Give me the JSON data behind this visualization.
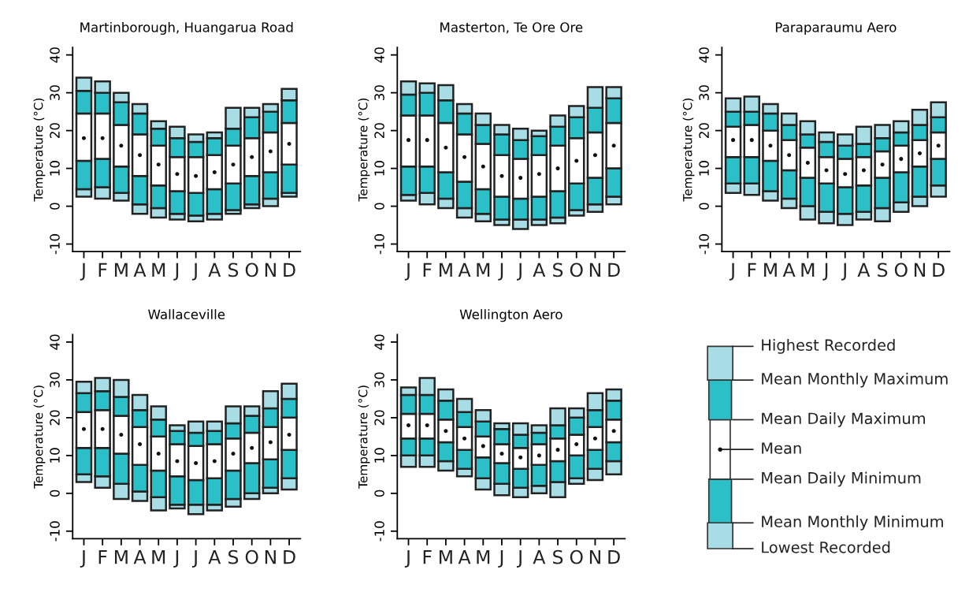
{
  "chart_data": [
    {
      "type": "bar",
      "title": "Martinborough, Huangarua Road",
      "ylabel": "Temperature (°C)",
      "categories": [
        "J",
        "F",
        "M",
        "A",
        "M",
        "J",
        "J",
        "A",
        "S",
        "O",
        "N",
        "D"
      ],
      "ylim": [
        -12,
        42
      ],
      "yticks": [
        -10,
        0,
        10,
        20,
        30,
        40
      ],
      "grid": false,
      "series": [
        {
          "color": "#a8dde6",
          "base": [
            2.5,
            2,
            1.5,
            -2,
            -3,
            -3.5,
            -4,
            -3.5,
            -2,
            -0.5,
            0,
            2.5
          ],
          "values": [
            2,
            3,
            2,
            2.5,
            2.5,
            1.5,
            1.5,
            1.5,
            1,
            1,
            2,
            1
          ]
        },
        {
          "color": "#2bbfc7",
          "base": [
            4.5,
            5,
            3.5,
            0.5,
            -0.5,
            -2,
            -2.5,
            -2,
            -1,
            0.5,
            2,
            3.5
          ],
          "values": [
            7.5,
            7.5,
            7,
            7.5,
            6,
            6,
            6,
            6.5,
            7,
            7.5,
            7,
            7.5
          ]
        },
        {
          "color": "#ffffff",
          "base": [
            12,
            12.5,
            10.5,
            8,
            5.5,
            4,
            3.5,
            4.5,
            6,
            8,
            9,
            11
          ],
          "values": [
            12.5,
            12,
            11,
            11,
            10.5,
            9,
            9.5,
            9,
            10,
            10,
            10.5,
            11
          ]
        },
        {
          "color": "#2bbfc7",
          "base": [
            24.5,
            24.5,
            21.5,
            19,
            16,
            13,
            13,
            13.5,
            16,
            18,
            19.5,
            22
          ],
          "values": [
            6,
            5.5,
            6,
            5.5,
            4.5,
            5,
            4,
            4.5,
            4.5,
            5.5,
            5.5,
            6
          ]
        },
        {
          "color": "#a8dde6",
          "base": [
            30.5,
            30,
            27.5,
            24.5,
            20.5,
            18,
            17,
            18,
            20.5,
            23.5,
            25,
            28
          ],
          "values": [
            3.5,
            3,
            2.5,
            2.5,
            2,
            3,
            2,
            1.5,
            5.5,
            2.5,
            2,
            3
          ]
        },
        {
          "type": "scatter",
          "marker": "circle",
          "color": "#111111",
          "values": [
            18,
            18,
            16,
            13.5,
            11,
            8.5,
            8,
            9,
            11,
            13,
            14.5,
            16.5
          ]
        }
      ]
    },
    {
      "type": "bar",
      "title": "Masterton, Te Ore Ore",
      "ylabel": "Temperature (°C)",
      "categories": [
        "J",
        "F",
        "M",
        "A",
        "M",
        "J",
        "J",
        "A",
        "S",
        "O",
        "N",
        "D"
      ],
      "ylim": [
        -12,
        42
      ],
      "yticks": [
        -10,
        0,
        10,
        20,
        30,
        40
      ],
      "grid": false,
      "series": [
        {
          "color": "#a8dde6",
          "base": [
            1.5,
            0.5,
            -0.5,
            -3,
            -4,
            -5,
            -6,
            -5,
            -4.5,
            -2.5,
            -1.5,
            0.5
          ],
          "values": [
            1.5,
            3,
            2.5,
            2.5,
            2,
            1.5,
            2.5,
            1.5,
            1.5,
            1.5,
            2,
            2
          ]
        },
        {
          "color": "#2bbfc7",
          "base": [
            3,
            3.5,
            2,
            -0.5,
            -2,
            -3.5,
            -3.5,
            -3.5,
            -3,
            -1,
            0.5,
            2.5
          ],
          "values": [
            7.5,
            7,
            7,
            7,
            6.5,
            6,
            5.5,
            6,
            7,
            7,
            7,
            7.5
          ]
        },
        {
          "color": "#ffffff",
          "base": [
            10.5,
            10.5,
            9,
            6.5,
            4.5,
            2.5,
            2,
            2.5,
            4,
            6,
            7.5,
            10
          ],
          "values": [
            13.5,
            13.5,
            13,
            12.5,
            12,
            11,
            10.5,
            11,
            12,
            12,
            12,
            12
          ]
        },
        {
          "color": "#2bbfc7",
          "base": [
            24,
            24,
            22,
            19,
            16.5,
            13.5,
            12.5,
            13.5,
            16,
            18,
            19.5,
            22
          ],
          "values": [
            5.5,
            6,
            6,
            5.5,
            5,
            5.5,
            5,
            5,
            5,
            5.5,
            6.5,
            6.5
          ]
        },
        {
          "color": "#a8dde6",
          "base": [
            29.5,
            30,
            28,
            24.5,
            21.5,
            19,
            17.5,
            18.5,
            21,
            23.5,
            26,
            28.5
          ],
          "values": [
            3.5,
            2.5,
            4,
            2.5,
            3,
            2.5,
            3,
            1.5,
            3,
            3,
            5.5,
            3
          ]
        },
        {
          "type": "scatter",
          "marker": "circle",
          "color": "#111111",
          "values": [
            17.5,
            17.5,
            15.5,
            13,
            10.5,
            8,
            7.5,
            8.5,
            10,
            12,
            13.5,
            16
          ]
        }
      ]
    },
    {
      "type": "bar",
      "title": "Paraparaumu Aero",
      "ylabel": "Temperature (°C)",
      "categories": [
        "J",
        "F",
        "M",
        "A",
        "M",
        "J",
        "J",
        "A",
        "S",
        "O",
        "N",
        "D"
      ],
      "ylim": [
        -12,
        42
      ],
      "yticks": [
        -10,
        0,
        10,
        20,
        30,
        40
      ],
      "grid": false,
      "series": [
        {
          "color": "#a8dde6",
          "base": [
            3.5,
            3,
            1.5,
            -0.5,
            -3.5,
            -4.5,
            -5,
            -3.5,
            -4,
            -1.5,
            0,
            2.5
          ],
          "values": [
            2.5,
            3,
            2.5,
            2.5,
            3.5,
            3,
            3,
            2,
            3.5,
            2.5,
            2.5,
            3
          ]
        },
        {
          "color": "#2bbfc7",
          "base": [
            6,
            6,
            4,
            2,
            0,
            -1.5,
            -2,
            -1.5,
            -0.5,
            1,
            2.5,
            5.5
          ],
          "values": [
            7,
            7,
            8,
            7.5,
            7.5,
            7.5,
            7,
            7,
            8,
            8,
            8,
            7
          ]
        },
        {
          "color": "#ffffff",
          "base": [
            13,
            13,
            12,
            9.5,
            7.5,
            6,
            5,
            5.5,
            7.5,
            9,
            10.5,
            12.5
          ],
          "values": [
            8,
            8.5,
            8,
            8,
            8,
            7,
            7.5,
            7.5,
            7,
            7,
            7,
            7
          ]
        },
        {
          "color": "#2bbfc7",
          "base": [
            21,
            21.5,
            20,
            17.5,
            15.5,
            13,
            12.5,
            13,
            14.5,
            16,
            17.5,
            19.5
          ],
          "values": [
            4,
            3.5,
            4.5,
            4,
            3.5,
            4,
            3.5,
            3.5,
            3.5,
            3.5,
            4,
            4
          ]
        },
        {
          "color": "#a8dde6",
          "base": [
            25,
            25,
            24.5,
            21.5,
            19,
            17,
            16,
            16.5,
            18,
            19.5,
            21.5,
            23.5
          ],
          "values": [
            3.5,
            4,
            2.5,
            3,
            3.5,
            2.5,
            3,
            4.5,
            3.5,
            3,
            4,
            4
          ]
        },
        {
          "type": "scatter",
          "marker": "circle",
          "color": "#111111",
          "values": [
            17.5,
            17.5,
            16,
            13.5,
            11.5,
            9.5,
            8.5,
            9.5,
            11,
            12.5,
            14,
            16
          ]
        }
      ]
    },
    {
      "type": "bar",
      "title": "Wallaceville",
      "ylabel": "Temperature (°C)",
      "categories": [
        "J",
        "F",
        "M",
        "A",
        "M",
        "J",
        "J",
        "A",
        "S",
        "O",
        "N",
        "D"
      ],
      "ylim": [
        -12,
        42
      ],
      "yticks": [
        -10,
        0,
        10,
        20,
        30,
        40
      ],
      "grid": false,
      "series": [
        {
          "color": "#a8dde6",
          "base": [
            3,
            1.5,
            -1.5,
            -2,
            -4.5,
            -4,
            -5.5,
            -4.5,
            -3.5,
            -1.5,
            0,
            1
          ],
          "values": [
            2,
            3,
            4,
            2.5,
            3.5,
            1,
            2.5,
            1.5,
            2,
            1.5,
            1.5,
            3
          ]
        },
        {
          "color": "#2bbfc7",
          "base": [
            5,
            4.5,
            2.5,
            0.5,
            -1,
            -3,
            -3,
            -3,
            -1.5,
            0,
            1.5,
            4
          ],
          "values": [
            7,
            7.5,
            8,
            7,
            7,
            7.5,
            6.5,
            7,
            7.5,
            8,
            7.5,
            7.5
          ]
        },
        {
          "color": "#ffffff",
          "base": [
            12,
            12,
            10.5,
            7.5,
            6,
            4.5,
            3.5,
            4,
            6,
            8,
            9,
            11.5
          ],
          "values": [
            9.5,
            10,
            10,
            10,
            9,
            8.5,
            9,
            9,
            8.5,
            8,
            8.5,
            8.5
          ]
        },
        {
          "color": "#2bbfc7",
          "base": [
            21.5,
            22,
            20.5,
            17.5,
            15,
            13,
            12.5,
            13,
            14.5,
            16,
            17.5,
            20
          ],
          "values": [
            5,
            5,
            5,
            4.5,
            4.5,
            3.5,
            3.5,
            3.5,
            4,
            4.5,
            5,
            5
          ]
        },
        {
          "color": "#a8dde6",
          "base": [
            26.5,
            27,
            25.5,
            22,
            19.5,
            16.5,
            16,
            16.5,
            18.5,
            20.5,
            22.5,
            25
          ],
          "values": [
            3,
            3.5,
            4.5,
            4,
            3.5,
            1.5,
            3,
            2.5,
            4.5,
            2.5,
            4.5,
            4
          ]
        },
        {
          "type": "scatter",
          "marker": "circle",
          "color": "#111111",
          "values": [
            17,
            17,
            15.5,
            13,
            10.5,
            8.5,
            8,
            8.5,
            10.5,
            12,
            13.5,
            15.5
          ]
        }
      ]
    },
    {
      "type": "bar",
      "title": "Wellington Aero",
      "ylabel": "Temperature (°C)",
      "categories": [
        "J",
        "F",
        "M",
        "A",
        "M",
        "J",
        "J",
        "A",
        "S",
        "O",
        "N",
        "D"
      ],
      "ylim": [
        -12,
        42
      ],
      "yticks": [
        -10,
        0,
        10,
        20,
        30,
        40
      ],
      "grid": false,
      "series": [
        {
          "color": "#a8dde6",
          "base": [
            7,
            7,
            6,
            4.5,
            1,
            -0.5,
            -1,
            0,
            -1,
            2.5,
            3.5,
            5
          ],
          "values": [
            3,
            3,
            2.5,
            2,
            3,
            3,
            2.5,
            2,
            4,
            1.5,
            3,
            3.5
          ]
        },
        {
          "color": "#2bbfc7",
          "base": [
            10,
            10,
            8.5,
            6.5,
            4,
            2.5,
            1.5,
            2,
            3,
            4,
            6.5,
            8.5
          ],
          "values": [
            4.5,
            4.5,
            5,
            5,
            5.5,
            5.5,
            5,
            5.5,
            5.5,
            6,
            5,
            5
          ]
        },
        {
          "color": "#ffffff",
          "base": [
            14.5,
            14.5,
            13.5,
            11.5,
            9.5,
            8,
            6.5,
            7.5,
            8.5,
            10,
            11.5,
            13.5
          ],
          "values": [
            6.5,
            6.5,
            6,
            6,
            5.5,
            5,
            5.5,
            5.5,
            6,
            5.5,
            6,
            6
          ]
        },
        {
          "color": "#2bbfc7",
          "base": [
            21,
            21,
            19.5,
            17.5,
            15,
            13,
            12,
            13,
            14.5,
            15.5,
            17.5,
            19.5
          ],
          "values": [
            5,
            5,
            5,
            4,
            4,
            4,
            3.5,
            3,
            3.5,
            4.5,
            4.5,
            5
          ]
        },
        {
          "color": "#a8dde6",
          "base": [
            26,
            26,
            24.5,
            21.5,
            19,
            17,
            15.5,
            16,
            18,
            20,
            22,
            24.5
          ],
          "values": [
            2,
            4.5,
            3,
            3.5,
            3,
            1.5,
            3,
            2,
            4.5,
            2.5,
            4.5,
            3
          ]
        },
        {
          "type": "scatter",
          "marker": "circle",
          "color": "#111111",
          "values": [
            18,
            18,
            16.5,
            14.5,
            12.5,
            10.5,
            9.5,
            10,
            11.5,
            13,
            14.5,
            16.5
          ]
        }
      ]
    },
    {
      "type": "other",
      "annotations": [
        "Highest Recorded",
        "Mean Monthly Maximum",
        "Mean Daily Maximum",
        "Mean",
        "Mean Daily Minimum",
        "Mean Monthly Minimum",
        "Lowest Recorded"
      ]
    }
  ]
}
